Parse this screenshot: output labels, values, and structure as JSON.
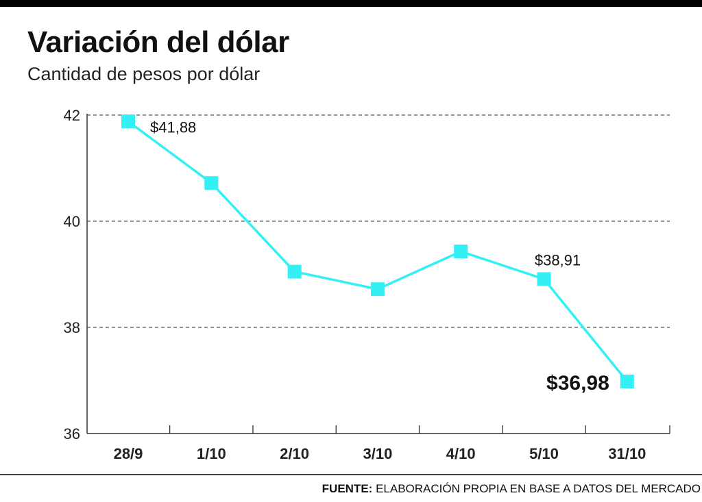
{
  "header": {
    "title": "Variación del dólar",
    "subtitle": "Cantidad de pesos por dólar"
  },
  "footer": {
    "source_label": "FUENTE:",
    "source_text": "ELABORACIÓN PROPIA EN BASE A DATOS DEL MERCADO"
  },
  "colors": {
    "line": "#33f0f5",
    "axis": "#333333",
    "grid": "#555555"
  },
  "chart_data": {
    "type": "line",
    "title": "Variación del dólar",
    "subtitle": "Cantidad de pesos por dólar",
    "xlabel": "",
    "ylabel": "",
    "categories": [
      "28/9",
      "1/10",
      "2/10",
      "3/10",
      "4/10",
      "5/10",
      "31/10"
    ],
    "series": [
      {
        "values": [
          41.88,
          40.72,
          39.05,
          38.72,
          39.43,
          38.91,
          36.98
        ]
      }
    ],
    "ylim": [
      36,
      42
    ],
    "yticks": [
      36,
      38,
      40,
      42
    ],
    "grid": "horizontal dashed",
    "legend": "none",
    "annotations": [
      {
        "index": 0,
        "text": "$41,88",
        "emphasis": false
      },
      {
        "index": 5,
        "text": "$38,91",
        "emphasis": false
      },
      {
        "index": 6,
        "text": "$36,98",
        "emphasis": true
      }
    ]
  }
}
